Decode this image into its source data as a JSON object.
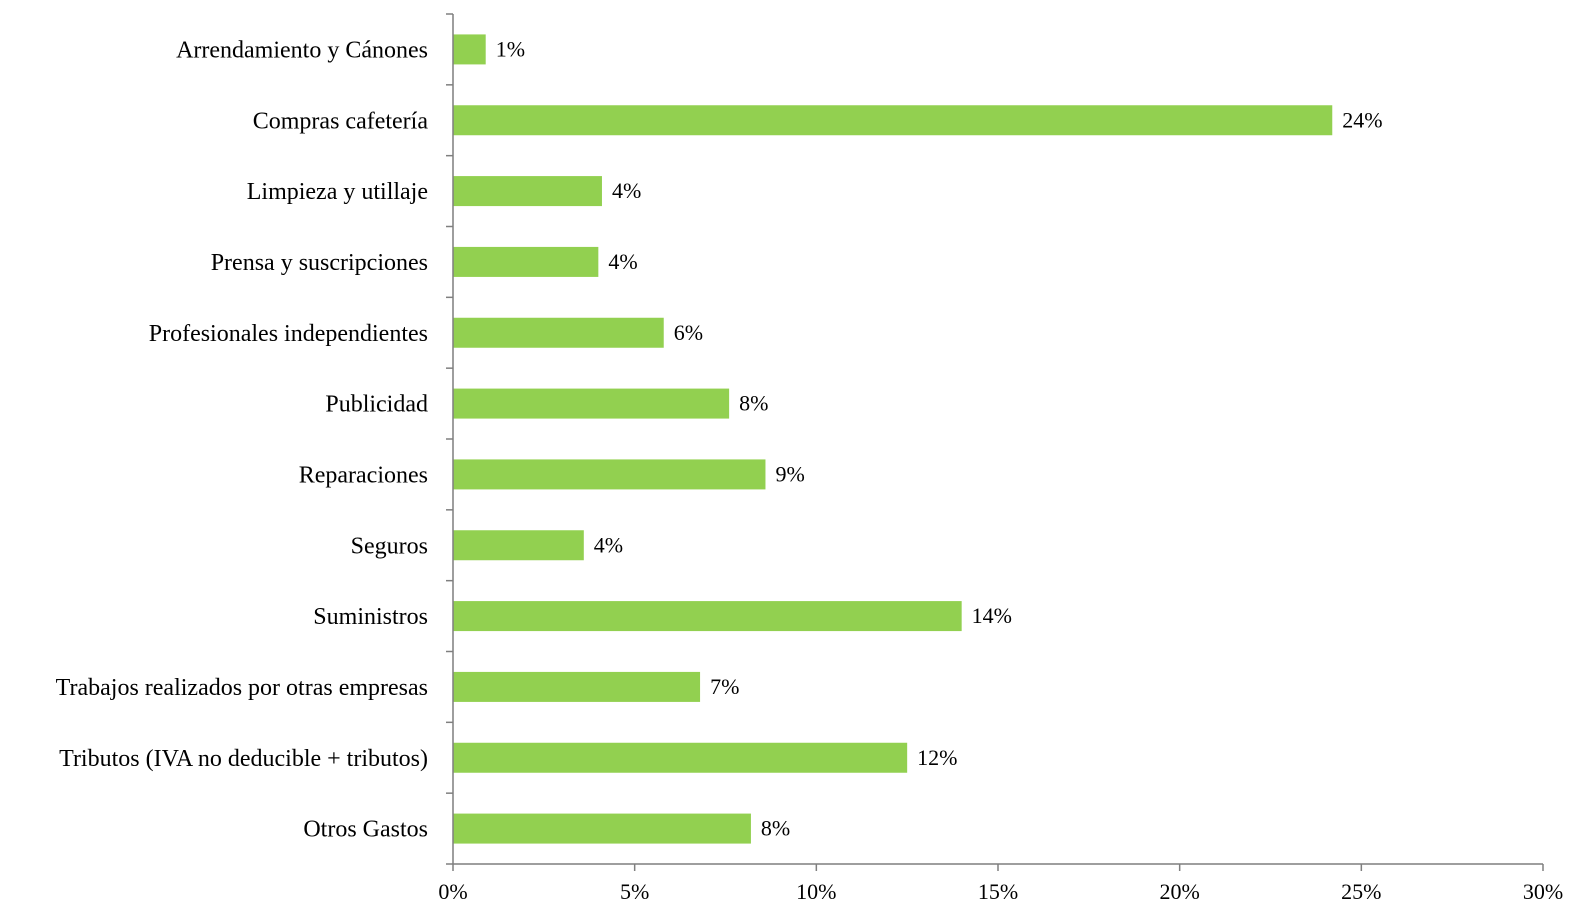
{
  "chart_data": {
    "type": "bar",
    "orientation": "horizontal",
    "categories": [
      "Arrendamiento y Cánones",
      "Compras cafetería",
      "Limpieza y utillaje",
      "Prensa y suscripciones",
      "Profesionales independientes",
      "Publicidad",
      "Reparaciones",
      "Seguros",
      "Suministros",
      "Trabajos realizados por otras empresas",
      "Tributos (IVA no deducible + tributos)",
      "Otros Gastos"
    ],
    "values": [
      0.9,
      24.2,
      4.1,
      4.0,
      5.8,
      7.6,
      8.6,
      3.6,
      14.0,
      6.8,
      12.5,
      8.2
    ],
    "value_labels": [
      "1%",
      "24%",
      "4%",
      "4%",
      "6%",
      "8%",
      "9%",
      "4%",
      "14%",
      "7%",
      "12%",
      "8%"
    ],
    "x_ticks": [
      "0%",
      "5%",
      "10%",
      "15%",
      "20%",
      "25%",
      "30%"
    ],
    "xlim": [
      0,
      30
    ],
    "title": "",
    "xlabel": "",
    "ylabel": "",
    "grid": false,
    "legend": "none",
    "bar_color": "#92d050",
    "axis_color": "#7f7f7f"
  }
}
